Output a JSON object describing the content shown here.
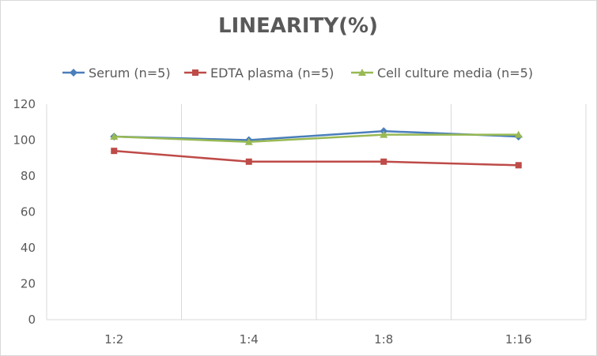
{
  "chart_data": {
    "type": "line",
    "title": "LINEARITY(%)",
    "categories": [
      "1:2",
      "1:4",
      "1:8",
      "1:16"
    ],
    "ylim": [
      0,
      120
    ],
    "yticks": [
      0,
      20,
      40,
      60,
      80,
      100,
      120
    ],
    "grid": "vertical category lines only",
    "legend_position": "top",
    "series": [
      {
        "name": "Serum (n=5)",
        "values": [
          102,
          100,
          105,
          102
        ],
        "color": "#4a7ebb",
        "marker": "diamond"
      },
      {
        "name": "EDTA plasma (n=5)",
        "values": [
          94,
          88,
          88,
          86
        ],
        "color": "#be4b48",
        "marker": "square"
      },
      {
        "name": "Cell culture media (n=5)",
        "values": [
          102,
          99,
          103,
          103
        ],
        "color": "#98b954",
        "marker": "triangle"
      }
    ]
  }
}
